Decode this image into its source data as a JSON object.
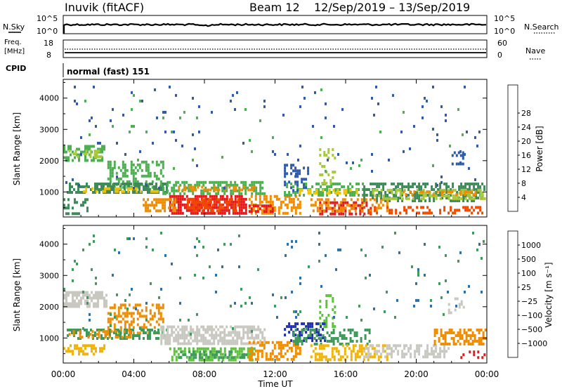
{
  "header": {
    "station": "Inuvik (fitACF)",
    "beam": "Beam 12",
    "date_range": "12/Sep/2019 – 13/Sep/2019"
  },
  "nsky_panel": {
    "left_label": "N.Sky",
    "right_label": "N.Search",
    "left_ticks": [
      "10^5",
      "10^0"
    ],
    "right_ticks": [
      "10^5",
      "10^0"
    ]
  },
  "freq_panel": {
    "left_label_1": "Freq.",
    "left_label_2": "[MHz]",
    "right_label": "Nave",
    "left_ticks": [
      "18",
      "8"
    ],
    "right_ticks": [
      "60",
      "0"
    ]
  },
  "cpid": {
    "label": "CPID",
    "value": "normal (fast) 151"
  },
  "chart_data": [
    {
      "type": "heatmap",
      "name": "power",
      "ylabel": "Slant Range [km]",
      "y_ticks": [
        1000,
        2000,
        3000,
        4000
      ],
      "ylim": [
        200,
        4600
      ],
      "colorbar_label": "Power [dB]",
      "colorbar_ticks": [
        "4",
        "8",
        "12",
        "16",
        "20",
        "24",
        "28"
      ],
      "colorbar_colors": [
        "#1f2cf0",
        "#2e5aa8",
        "#3e8a5a",
        "#4caf50",
        "#a6c83a",
        "#f2c200",
        "#f08c00",
        "#f04a00",
        "#e31a1c"
      ],
      "blobs": [
        {
          "x0": 0.0,
          "x1": 2.6,
          "y0": 1900,
          "y1": 2500,
          "color": "#4caf50",
          "density": 0.55
        },
        {
          "x0": 0.3,
          "x1": 2.4,
          "y0": 2050,
          "y1": 2350,
          "color": "#a6c83a",
          "density": 0.35
        },
        {
          "x0": 2.5,
          "x1": 5.8,
          "y0": 1100,
          "y1": 2000,
          "color": "#4caf50",
          "density": 0.45
        },
        {
          "x0": 0.2,
          "x1": 6.0,
          "y0": 900,
          "y1": 1300,
          "color": "#3e8a5a",
          "density": 0.6
        },
        {
          "x0": 1.0,
          "x1": 5.5,
          "y0": 950,
          "y1": 1150,
          "color": "#f2c200",
          "density": 0.35
        },
        {
          "x0": 5.5,
          "x1": 11.5,
          "y0": 900,
          "y1": 1350,
          "color": "#4caf50",
          "density": 0.55
        },
        {
          "x0": 6.5,
          "x1": 11.0,
          "y0": 950,
          "y1": 1200,
          "color": "#f08c00",
          "density": 0.5
        },
        {
          "x0": 6.0,
          "x1": 10.5,
          "y0": 250,
          "y1": 900,
          "color": "#e31a1c",
          "density": 0.75
        },
        {
          "x0": 7.0,
          "x1": 10.0,
          "y0": 350,
          "y1": 800,
          "color": "#f04a00",
          "density": 0.45
        },
        {
          "x0": 4.5,
          "x1": 6.5,
          "y0": 300,
          "y1": 800,
          "color": "#f08c00",
          "density": 0.6
        },
        {
          "x0": 10.5,
          "x1": 13.5,
          "y0": 250,
          "y1": 900,
          "color": "#f08c00",
          "density": 0.55
        },
        {
          "x0": 10.5,
          "x1": 12.0,
          "y0": 300,
          "y1": 600,
          "color": "#e31a1c",
          "density": 0.5
        },
        {
          "x0": 12.5,
          "x1": 17.5,
          "y0": 800,
          "y1": 1300,
          "color": "#4caf50",
          "density": 0.45
        },
        {
          "x0": 13.0,
          "x1": 17.0,
          "y0": 900,
          "y1": 1100,
          "color": "#f2c200",
          "density": 0.35
        },
        {
          "x0": 14.5,
          "x1": 17.5,
          "y0": 250,
          "y1": 700,
          "color": "#e31a1c",
          "density": 0.55
        },
        {
          "x0": 14.0,
          "x1": 18.5,
          "y0": 300,
          "y1": 800,
          "color": "#f08c00",
          "density": 0.45
        },
        {
          "x0": 17.0,
          "x1": 24.0,
          "y0": 600,
          "y1": 1300,
          "color": "#3e8a5a",
          "density": 0.55
        },
        {
          "x0": 17.5,
          "x1": 24.0,
          "y0": 700,
          "y1": 1100,
          "color": "#a6c83a",
          "density": 0.4
        },
        {
          "x0": 19.0,
          "x1": 23.5,
          "y0": 800,
          "y1": 1050,
          "color": "#f08c00",
          "density": 0.3
        },
        {
          "x0": 17.0,
          "x1": 24.0,
          "y0": 250,
          "y1": 550,
          "color": "#f04a00",
          "density": 0.35
        },
        {
          "x0": 0.0,
          "x1": 1.5,
          "y0": 250,
          "y1": 800,
          "color": "#3e8a5a",
          "density": 0.35
        },
        {
          "x0": 12.5,
          "x1": 14.0,
          "y0": 1000,
          "y1": 1900,
          "color": "#2e5aa8",
          "density": 0.3
        },
        {
          "x0": 14.5,
          "x1": 15.5,
          "y0": 1200,
          "y1": 2400,
          "color": "#a6c83a",
          "density": 0.3
        },
        {
          "x0": 22.0,
          "x1": 22.8,
          "y0": 1700,
          "y1": 2300,
          "color": "#2e5aa8",
          "density": 0.35
        },
        {
          "x0": 0.0,
          "x1": 24.0,
          "y0": 1000,
          "y1": 4400,
          "color": "#2e5aa8",
          "density": 0.012
        },
        {
          "x0": 0.0,
          "x1": 24.0,
          "y0": 1500,
          "y1": 4400,
          "color": "#4caf50",
          "density": 0.008
        }
      ]
    },
    {
      "type": "heatmap",
      "name": "velocity",
      "xlabel": "Time UT",
      "ylabel": "Slant Range [km]",
      "x_ticks": [
        "00:00",
        "04:00",
        "08:00",
        "12:00",
        "16:00",
        "20:00",
        "00:00"
      ],
      "y_ticks": [
        1000,
        2000,
        3000,
        4000
      ],
      "ylim": [
        200,
        4600
      ],
      "colorbar_label": "Velocity [m s⁻¹]",
      "colorbar_ticks": [
        "1000",
        "500",
        "100",
        "25",
        "−25",
        "−100",
        "−500",
        "−1000"
      ],
      "colorbar_colors": [
        "#2030b0",
        "#2e6fa8",
        "#3e9a5a",
        "#5cc33a",
        "#c8c8c0",
        "#c8c8c0",
        "#f2b400",
        "#f08c00",
        "#f04a00",
        "#e31a1c"
      ],
      "blobs": [
        {
          "x0": 0.0,
          "x1": 2.6,
          "y0": 1900,
          "y1": 2500,
          "color": "#c8c8c0",
          "density": 0.6
        },
        {
          "x0": 2.5,
          "x1": 5.8,
          "y0": 1100,
          "y1": 2100,
          "color": "#f08c00",
          "density": 0.45
        },
        {
          "x0": 0.2,
          "x1": 6.0,
          "y0": 900,
          "y1": 1300,
          "color": "#3e9a5a",
          "density": 0.5
        },
        {
          "x0": 0.3,
          "x1": 4.0,
          "y0": 950,
          "y1": 1250,
          "color": "#f08c00",
          "density": 0.35
        },
        {
          "x0": 0.0,
          "x1": 2.5,
          "y0": 400,
          "y1": 800,
          "color": "#f2b400",
          "density": 0.45
        },
        {
          "x0": 5.5,
          "x1": 11.5,
          "y0": 700,
          "y1": 1400,
          "color": "#c8c8c0",
          "density": 0.7
        },
        {
          "x0": 6.0,
          "x1": 11.0,
          "y0": 250,
          "y1": 700,
          "color": "#5cc33a",
          "density": 0.5
        },
        {
          "x0": 6.5,
          "x1": 10.5,
          "y0": 300,
          "y1": 600,
          "color": "#3e9a5a",
          "density": 0.4
        },
        {
          "x0": 10.5,
          "x1": 13.5,
          "y0": 250,
          "y1": 900,
          "color": "#f08c00",
          "density": 0.45
        },
        {
          "x0": 12.5,
          "x1": 15.0,
          "y0": 800,
          "y1": 1500,
          "color": "#2030b0",
          "density": 0.45
        },
        {
          "x0": 13.0,
          "x1": 17.5,
          "y0": 700,
          "y1": 1300,
          "color": "#3e9a5a",
          "density": 0.4
        },
        {
          "x0": 14.0,
          "x1": 18.5,
          "y0": 250,
          "y1": 800,
          "color": "#f2b400",
          "density": 0.45
        },
        {
          "x0": 17.0,
          "x1": 22.0,
          "y0": 300,
          "y1": 800,
          "color": "#c8c8c0",
          "density": 0.5
        },
        {
          "x0": 21.0,
          "x1": 24.0,
          "y0": 700,
          "y1": 1300,
          "color": "#f08c00",
          "density": 0.55
        },
        {
          "x0": 22.5,
          "x1": 24.0,
          "y0": 250,
          "y1": 600,
          "color": "#e31a1c",
          "density": 0.3
        },
        {
          "x0": 14.5,
          "x1": 15.5,
          "y0": 1300,
          "y1": 2400,
          "color": "#5cc33a",
          "density": 0.3
        },
        {
          "x0": 21.8,
          "x1": 22.8,
          "y0": 1700,
          "y1": 2300,
          "color": "#c8c8c0",
          "density": 0.35
        },
        {
          "x0": 0.0,
          "x1": 24.0,
          "y0": 1000,
          "y1": 4400,
          "color": "#3e9a5a",
          "density": 0.012
        },
        {
          "x0": 0.0,
          "x1": 24.0,
          "y0": 1500,
          "y1": 4400,
          "color": "#2e6fa8",
          "density": 0.008
        }
      ]
    }
  ]
}
